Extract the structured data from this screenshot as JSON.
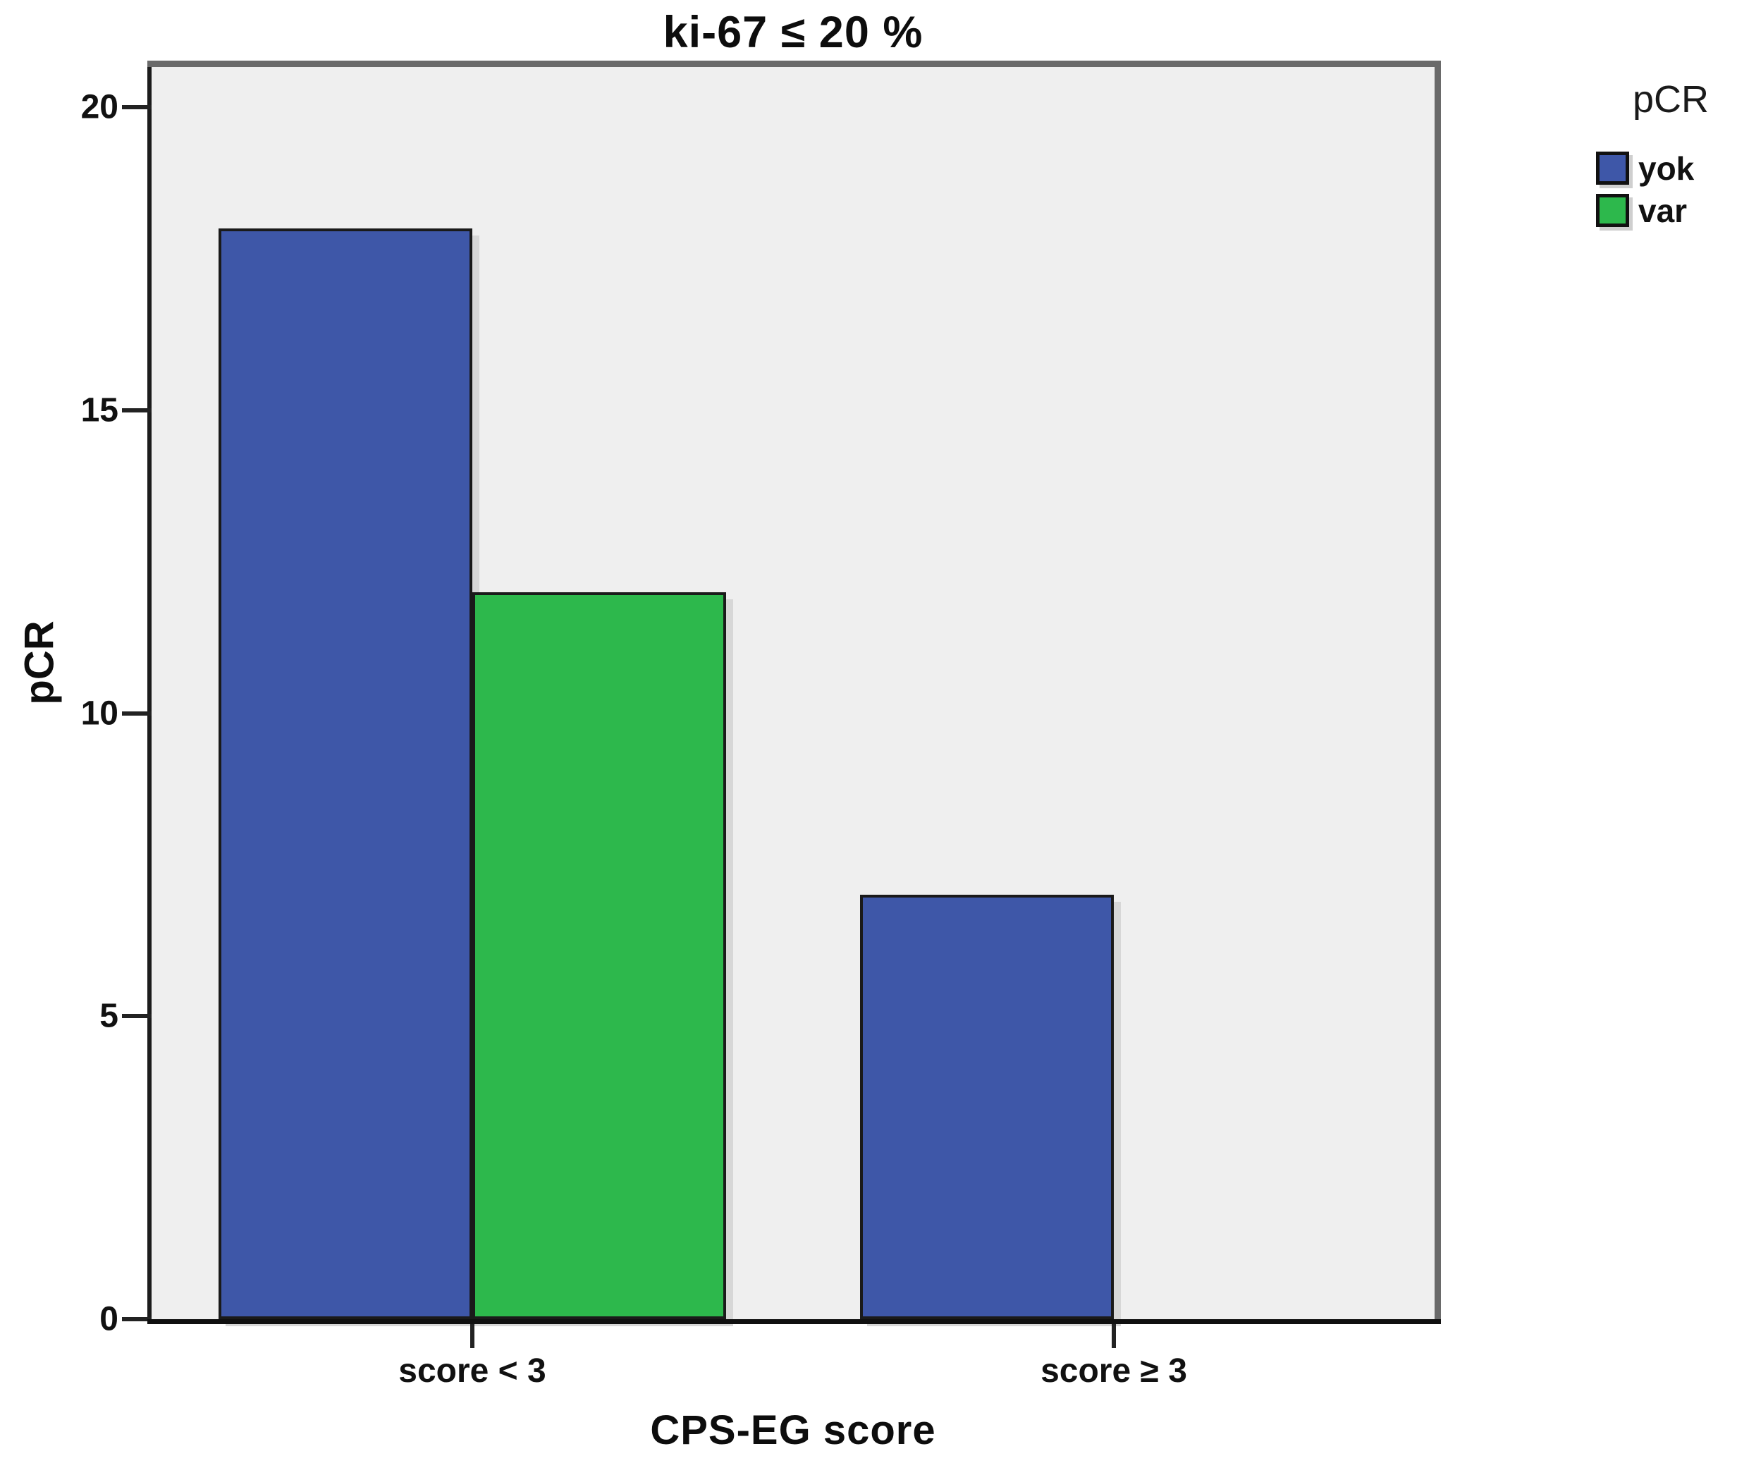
{
  "chart_data": {
    "type": "bar",
    "title": "ki-67 ≤ 20 %",
    "categories": [
      "score < 3",
      "score ≥ 3"
    ],
    "series": [
      {
        "name": "yok",
        "color": "#3E57A8",
        "values": [
          18,
          7
        ]
      },
      {
        "name": "var",
        "color": "#2DB84C",
        "values": [
          12,
          0
        ]
      }
    ],
    "xlabel": "CPS-EG score",
    "ylabel": "pCR",
    "ylim": [
      0,
      20
    ],
    "yticks": [
      0,
      5,
      10,
      15,
      20
    ],
    "grid": false,
    "plot_bg": "#EFEFEF",
    "bar_border_color": "#1A1A1A",
    "legend": {
      "title": "pCR",
      "position": "top-right"
    }
  }
}
